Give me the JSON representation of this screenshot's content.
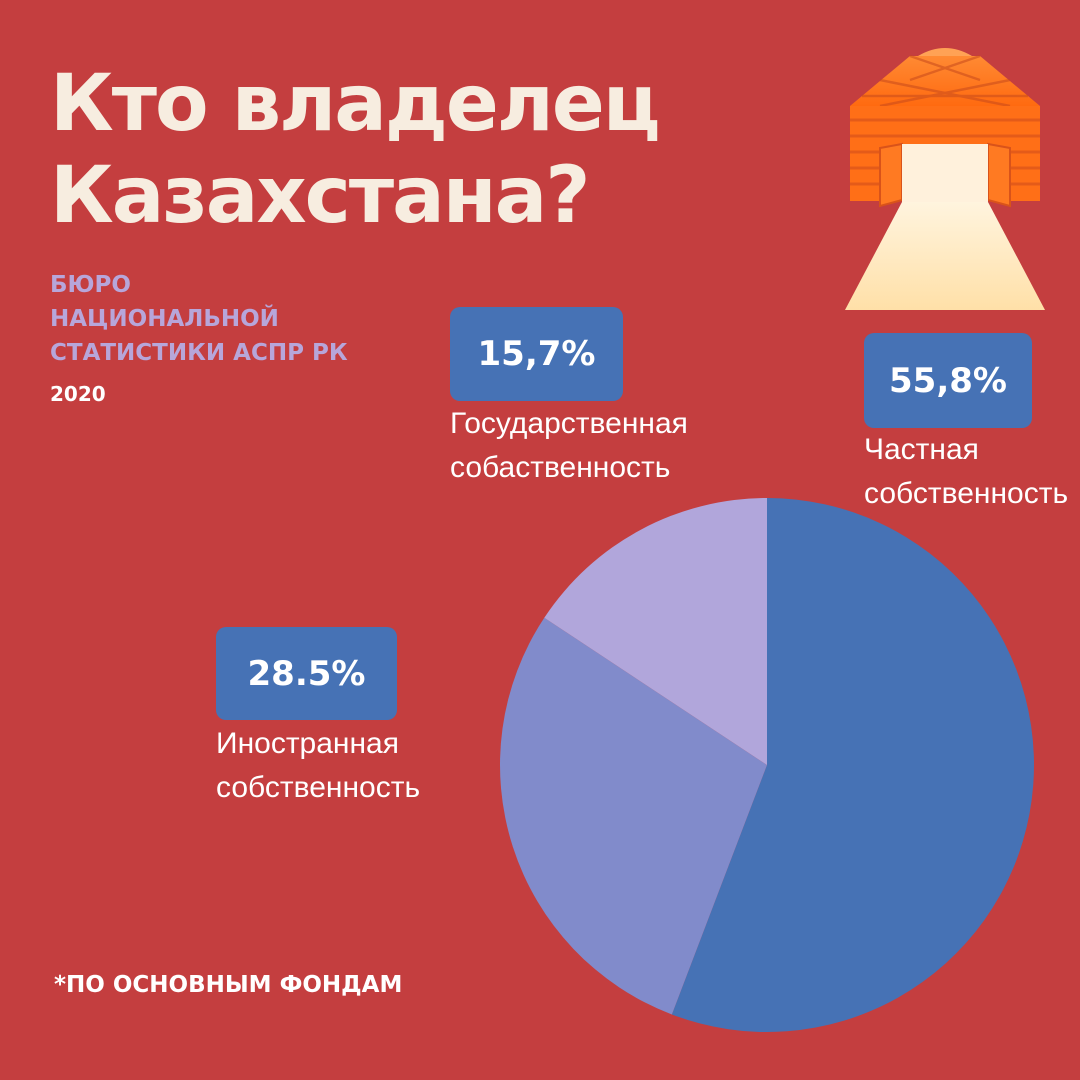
{
  "title": {
    "line1": "Кто владелец",
    "line2": "Казахстана?"
  },
  "source": {
    "line1": "БЮРО",
    "line2": "НАЦИОНАЛЬНОЙ",
    "line3": "СТАТИСТИКИ АСПР РК",
    "year": "2020"
  },
  "footnote": "*ПО ОСНОВНЫМ ФОНДАМ",
  "logo_icon": "yurt-doorway-icon",
  "colors": {
    "background": "#C43E3F",
    "badge": "#4672B5",
    "private": "#4672B5",
    "foreign": "#818BCB",
    "state": "#B1A6DB"
  },
  "chart_data": {
    "type": "pie",
    "slices": [
      {
        "label_line1": "Частная",
        "label_line2": "собственность",
        "value": 55.8,
        "value_label": "55,8%",
        "color": "#4672B5"
      },
      {
        "label_line1": "Иностранная",
        "label_line2": "собственность",
        "value": 28.5,
        "value_label": "28.5%",
        "color": "#818BCB"
      },
      {
        "label_line1": "Государственная",
        "label_line2": "собаственность",
        "value": 15.7,
        "value_label": "15,7%",
        "color": "#B1A6DB"
      }
    ]
  }
}
